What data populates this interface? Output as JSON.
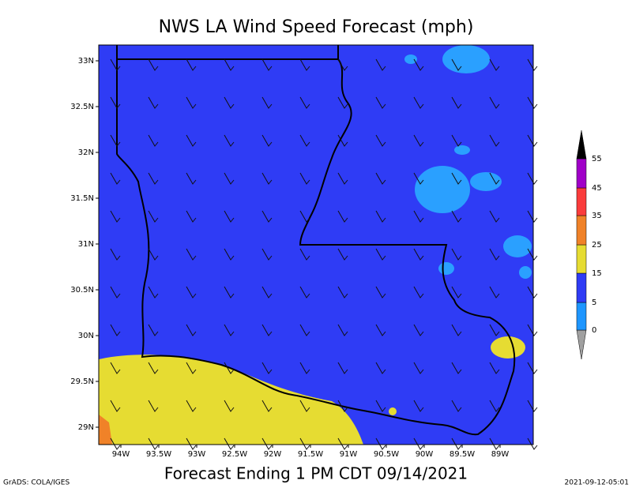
{
  "header": {
    "title": "NWS LA Wind Speed Forecast (mph)"
  },
  "map": {
    "lon_labels": [
      "94W",
      "93.5W",
      "93W",
      "92.5W",
      "92W",
      "91.5W",
      "91W",
      "90.5W",
      "90W",
      "89.5W",
      "89W"
    ],
    "lat_labels": [
      "33N",
      "32.5N",
      "32N",
      "31.5N",
      "31N",
      "30.5N",
      "30N",
      "29.5N",
      "29N"
    ]
  },
  "colorbar": {
    "levels": [
      0,
      5,
      15,
      25,
      35,
      45,
      55
    ],
    "colors": [
      "#a0a0a0",
      "#1e96ff",
      "#2f3cf5",
      "#e6dc32",
      "#f08228",
      "#fa3c3c",
      "#a000c8",
      "#000000"
    ]
  },
  "footer": {
    "caption": "Forecast Ending 1 PM CDT 09/14/2021",
    "credit": "GrADS: COLA/IGES",
    "timestamp": "2021-09-12-05:01"
  }
}
